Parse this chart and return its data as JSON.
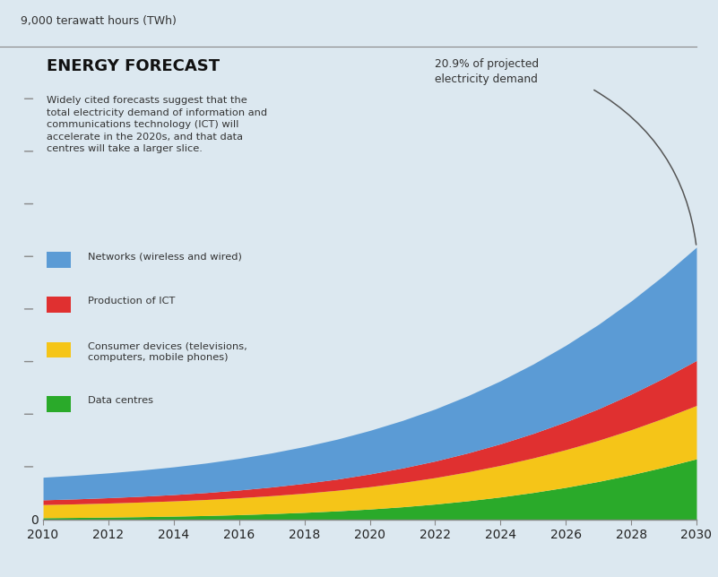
{
  "title": "ENERGY FORECAST",
  "subtitle": "Widely cited forecasts suggest that the\ntotal electricity demand of information and\ncommunications technology (ICT) will\naccelerate in the 2020s, and that data\ncentres will take a larger slice.",
  "annotation": "20.9% of projected\nelectricity demand",
  "ylabel": "9,000 terawatt hours (TWh)",
  "years": [
    2010,
    2011,
    2012,
    2013,
    2014,
    2015,
    2016,
    2017,
    2018,
    2019,
    2020,
    2021,
    2022,
    2023,
    2024,
    2025,
    2026,
    2027,
    2028,
    2029,
    2030
  ],
  "data_centres": [
    30,
    35,
    42,
    50,
    60,
    72,
    88,
    108,
    132,
    160,
    195,
    238,
    290,
    352,
    425,
    510,
    608,
    720,
    848,
    992,
    1150
  ],
  "consumer_devices": [
    250,
    258,
    267,
    278,
    290,
    305,
    322,
    342,
    365,
    392,
    425,
    462,
    503,
    550,
    601,
    657,
    717,
    783,
    855,
    933,
    1015
  ],
  "production_ict": [
    90,
    95,
    102,
    110,
    120,
    132,
    147,
    165,
    187,
    212,
    242,
    276,
    315,
    360,
    410,
    466,
    529,
    599,
    677,
    762,
    856
  ],
  "networks": [
    430,
    450,
    472,
    498,
    528,
    562,
    602,
    648,
    700,
    760,
    828,
    904,
    990,
    1088,
    1198,
    1320,
    1456,
    1606,
    1772,
    1954,
    2155
  ],
  "colors": {
    "data_centres": "#2aaa2a",
    "consumer_devices": "#f5c518",
    "production_ict": "#e03030",
    "networks": "#5b9bd5",
    "background": "#dce8f0"
  },
  "legend": [
    {
      "label": "Networks (wireless and wired)",
      "color": "#5b9bd5"
    },
    {
      "label": "Production of ICT",
      "color": "#e03030"
    },
    {
      "label": "Consumer devices (televisions,\ncomputers, mobile phones)",
      "color": "#f5c518"
    },
    {
      "label": "Data centres",
      "color": "#2aaa2a"
    }
  ],
  "ylim": [
    0,
    9000
  ],
  "xlim": [
    2010,
    2030
  ],
  "xticks": [
    2010,
    2012,
    2014,
    2016,
    2018,
    2020,
    2022,
    2024,
    2026,
    2028,
    2030
  ]
}
